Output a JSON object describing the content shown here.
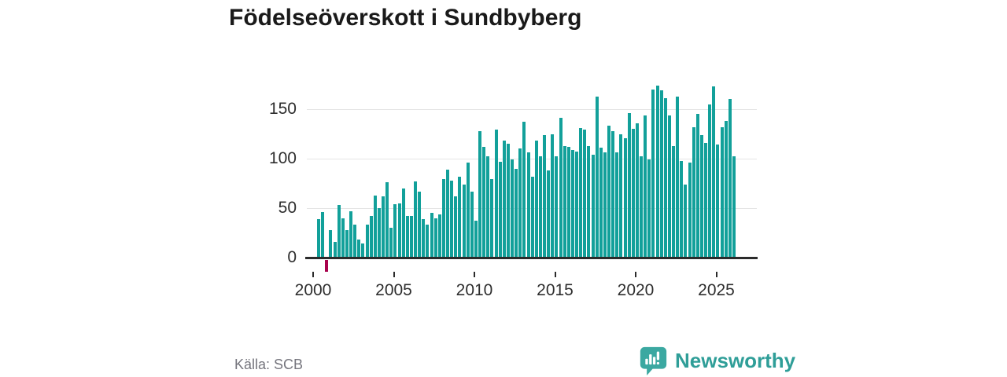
{
  "title": "Födelseöverskott i Sundbyberg",
  "source": "Källa: SCB",
  "brand": {
    "name": "Newsworthy"
  },
  "colors": {
    "bar": "#12a09a",
    "negative_bar": "#a8024c",
    "grid": "#e4e4e4",
    "axis": "#2b2b2b",
    "title_text": "#1a1a1a",
    "tick_text": "#2e2e2e",
    "source_text": "#75757d",
    "brand_teal": "#2f9e98",
    "logo_fill": "#3ba8a1"
  },
  "chart_data": {
    "type": "bar",
    "title": "Födelseöverskott i Sundbyberg",
    "xlabel": "",
    "ylabel": "",
    "x_unit": "quarter",
    "x_start": "2000-Q1",
    "x_end": "2025-Q4",
    "x_ticks": [
      2000,
      2005,
      2010,
      2015,
      2020,
      2025
    ],
    "y_ticks": [
      0,
      50,
      100,
      150
    ],
    "ylim": [
      -20,
      180
    ],
    "grid": "horizontal",
    "legend": "none",
    "values": [
      39,
      46,
      -12,
      28,
      16,
      53,
      40,
      28,
      47,
      33,
      18,
      14,
      33,
      42,
      63,
      50,
      62,
      76,
      30,
      54,
      55,
      70,
      42,
      42,
      77,
      67,
      39,
      33,
      45,
      40,
      44,
      79,
      89,
      78,
      62,
      82,
      74,
      96,
      67,
      37,
      128,
      112,
      102,
      79,
      129,
      97,
      118,
      115,
      99,
      90,
      110,
      137,
      106,
      82,
      118,
      102,
      124,
      88,
      125,
      102,
      141,
      113,
      112,
      109,
      107,
      131,
      129,
      113,
      104,
      163,
      111,
      106,
      133,
      128,
      106,
      125,
      121,
      146,
      130,
      136,
      102,
      144,
      99,
      170,
      174,
      169,
      161,
      144,
      113,
      163,
      98,
      74,
      96,
      132,
      145,
      124,
      116,
      155,
      173,
      114,
      132,
      138,
      160,
      102
    ]
  }
}
